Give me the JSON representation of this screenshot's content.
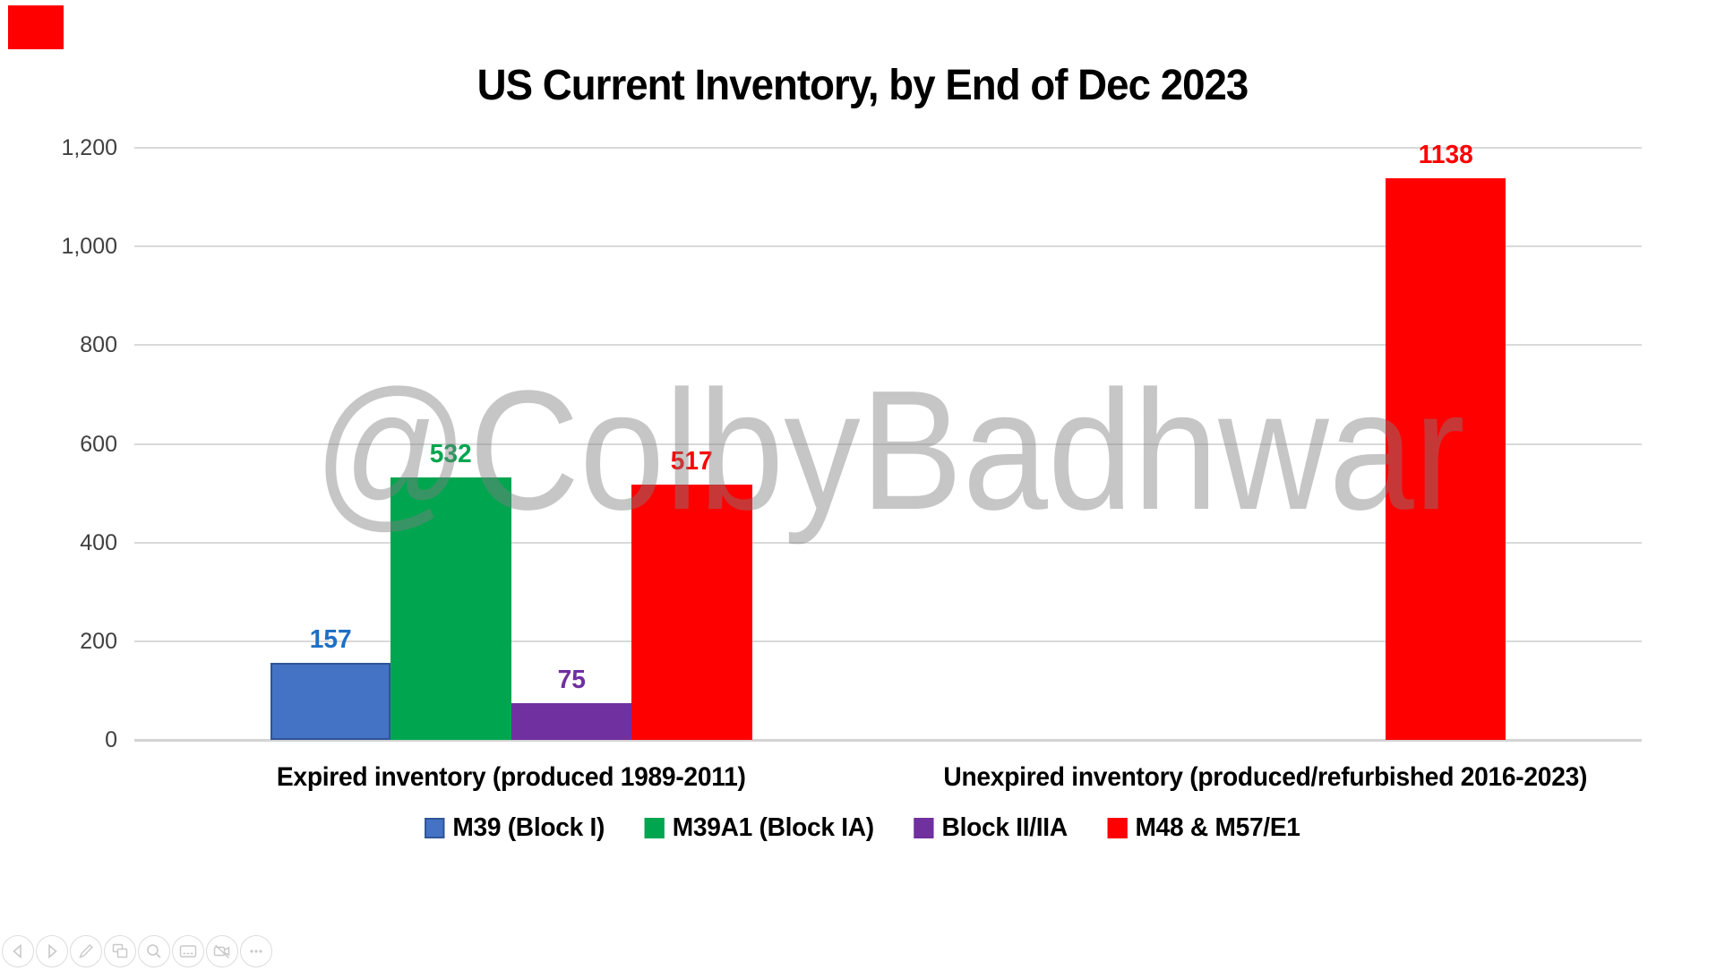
{
  "slide": {
    "marker_color": "#ff0000"
  },
  "watermark": {
    "text": "@ColbyBadhwar",
    "color": "#c7c7c7"
  },
  "chart_data": {
    "type": "bar",
    "title": "US Current Inventory, by End of Dec 2023",
    "categories": [
      "Expired inventory (produced 1989-2011)",
      "Unexpired inventory (produced/refurbished 2016-2023)"
    ],
    "series": [
      {
        "name": "M39 (Block I)",
        "color": "#4472c4",
        "label_color": "#1f6fc5",
        "bordered": true,
        "values": [
          157,
          null
        ]
      },
      {
        "name": "M39A1 (Block IA)",
        "color": "#00a64f",
        "label_color": "#00a64f",
        "bordered": false,
        "values": [
          532,
          null
        ]
      },
      {
        "name": "Block II/IIA",
        "color": "#7030a0",
        "label_color": "#7030a0",
        "bordered": false,
        "values": [
          75,
          null
        ]
      },
      {
        "name": "M48 & M57/E1",
        "color": "#ff0000",
        "label_color": "#ff0000",
        "bordered": false,
        "values": [
          517,
          1138
        ]
      }
    ],
    "data_labels": [
      [
        "157",
        "532",
        "75",
        "517"
      ],
      [
        null,
        null,
        null,
        "1138"
      ]
    ],
    "xlabel": "",
    "ylabel": "",
    "ylim": [
      0,
      1200
    ],
    "yticks": [
      {
        "value": 0,
        "label": "0"
      },
      {
        "value": 200,
        "label": "200"
      },
      {
        "value": 400,
        "label": "400"
      },
      {
        "value": 600,
        "label": "600"
      },
      {
        "value": 800,
        "label": "800"
      },
      {
        "value": 1000,
        "label": "1,000"
      },
      {
        "value": 1200,
        "label": "1,200"
      }
    ],
    "grid": true,
    "gridline_color": "#d9d9d9",
    "legend_position": "bottom"
  },
  "toolbar": {
    "icons": [
      {
        "name": "previous-slide"
      },
      {
        "name": "next-slide"
      },
      {
        "name": "pen-tools"
      },
      {
        "name": "see-all-slides"
      },
      {
        "name": "zoom-into-slide"
      },
      {
        "name": "captions"
      },
      {
        "name": "camera"
      },
      {
        "name": "more-options"
      }
    ]
  }
}
